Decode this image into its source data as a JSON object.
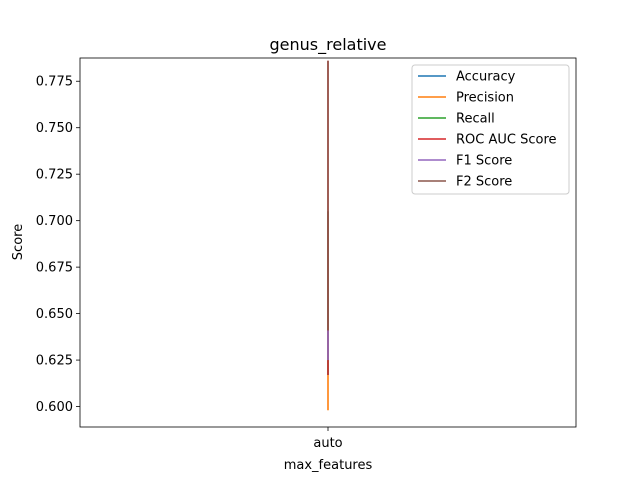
{
  "chart_data": {
    "type": "line",
    "title": "genus_relative",
    "xlabel": "max_features",
    "ylabel": "Score",
    "categories": [
      "auto"
    ],
    "ylim": [
      0.589,
      0.7875
    ],
    "yticks": [
      "0.600",
      "0.625",
      "0.650",
      "0.675",
      "0.700",
      "0.725",
      "0.750",
      "0.775"
    ],
    "legend_position": "top-right",
    "grid": false,
    "series": [
      {
        "name": "Accuracy",
        "color": "#1f77b4",
        "low": 0.617,
        "high": 0.705
      },
      {
        "name": "Precision",
        "color": "#ff7f0e",
        "low": 0.598,
        "high": 0.617
      },
      {
        "name": "Recall",
        "color": "#2ca02c",
        "low": 0.617,
        "high": 0.705
      },
      {
        "name": "ROC AUC Score",
        "color": "#d62728",
        "low": 0.617,
        "high": 0.786
      },
      {
        "name": "F1 Score",
        "color": "#9467bd",
        "low": 0.625,
        "high": 0.641
      },
      {
        "name": "F2 Score",
        "color": "#8c564b",
        "low": 0.641,
        "high": 0.786
      }
    ]
  }
}
